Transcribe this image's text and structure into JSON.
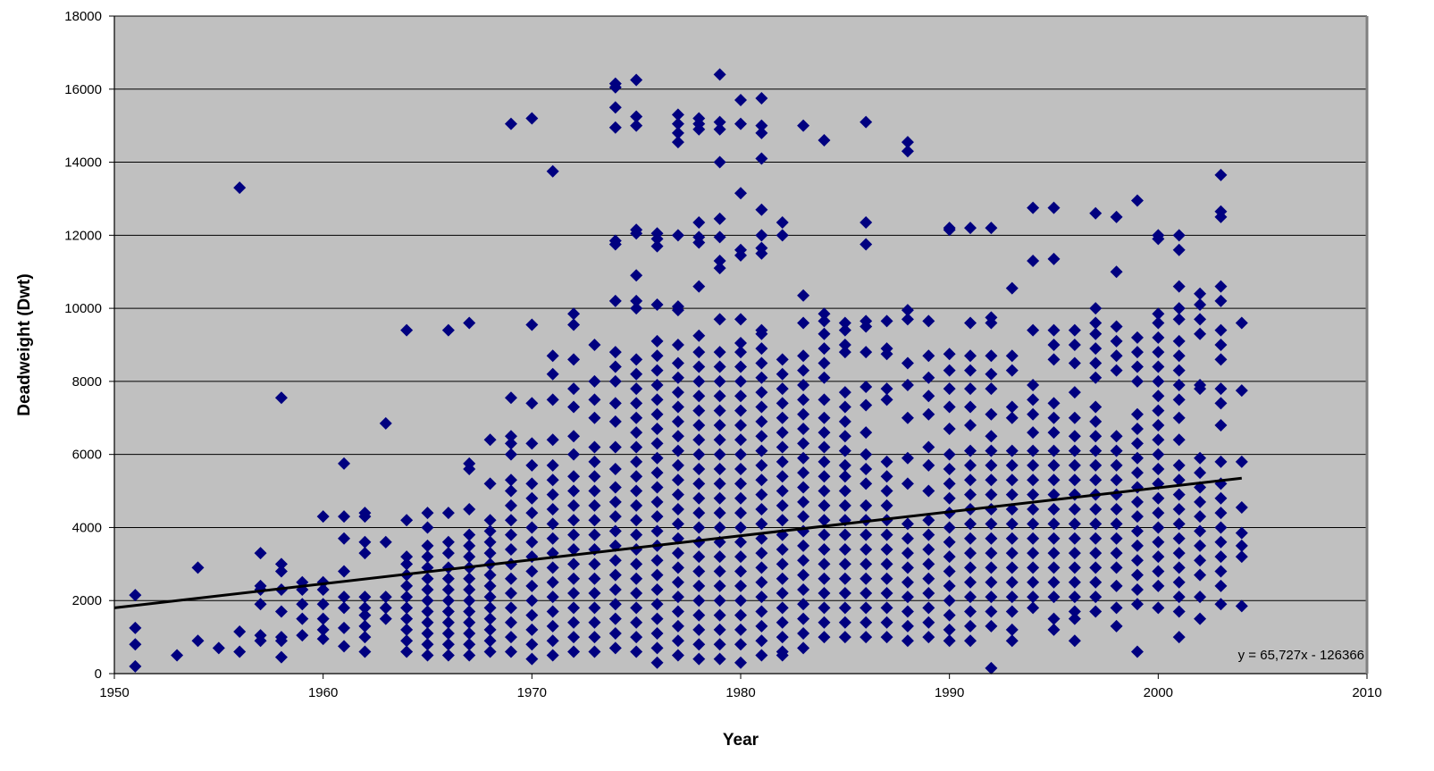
{
  "chart_data": {
    "type": "scatter",
    "xlabel": "Year",
    "ylabel": "Deadweight (Dwt)",
    "xlim": [
      1950,
      2010
    ],
    "ylim": [
      0,
      18000
    ],
    "x_ticks": [
      "1950",
      "1960",
      "1970",
      "1980",
      "1990",
      "2000",
      "2010"
    ],
    "y_ticks": [
      "0",
      "2000",
      "4000",
      "6000",
      "8000",
      "10000",
      "12000",
      "14000",
      "16000",
      "18000"
    ],
    "grid": "horizontal",
    "legend": "none",
    "trendline": {
      "type": "linear",
      "slope": 65.727,
      "intercept": -126366,
      "x_range": [
        1950,
        2004
      ],
      "label": "y = 65,727x - 126366"
    },
    "colors": {
      "plot_background": "#c0c0c0",
      "marker": "#000080",
      "trendline": "#000000",
      "gridline": "#000000"
    },
    "marker_shape": "diamond",
    "columns": [
      {
        "year": 1951,
        "points": [
          200,
          800,
          1250,
          2150
        ]
      },
      {
        "year": 1953,
        "points": [
          500
        ]
      },
      {
        "year": 1954,
        "points": [
          900,
          2900
        ]
      },
      {
        "year": 1955,
        "points": [
          700
        ]
      },
      {
        "year": 1956,
        "points": [
          600,
          1150,
          13300
        ]
      },
      {
        "year": 1957,
        "points": [
          900,
          1050,
          1900,
          2300,
          2400,
          3300
        ]
      },
      {
        "year": 1958,
        "points": [
          450,
          900,
          1000,
          1700,
          2300,
          2800,
          3000,
          7550
        ]
      },
      {
        "year": 1959,
        "points": [
          1050,
          1500,
          1900,
          2300,
          2500
        ]
      },
      {
        "year": 1960,
        "points": [
          950,
          1200,
          1500,
          1900,
          2300,
          2500,
          4300
        ]
      },
      {
        "year": 1961,
        "points": [
          750,
          1250,
          1800,
          2100,
          2800,
          3700,
          4300,
          5750
        ]
      },
      {
        "year": 1962,
        "points": [
          600,
          1000,
          1300,
          1600,
          1800,
          2100,
          3300,
          3600,
          4300,
          4400
        ]
      },
      {
        "year": 1963,
        "points": [
          1500,
          1800,
          2100,
          3600,
          6850
        ]
      },
      {
        "year": 1964,
        "points": [
          600,
          900,
          1200,
          1500,
          1800,
          2100,
          2400,
          2700,
          3000,
          3200,
          4200,
          9400
        ]
      },
      {
        "year": 1965,
        "points": [
          500,
          800,
          1100,
          1400,
          1700,
          2000,
          2300,
          2600,
          2900,
          3200,
          3500,
          4000,
          4400
        ]
      },
      {
        "year": 1966,
        "points": [
          500,
          800,
          1100,
          1400,
          1700,
          2000,
          2300,
          2600,
          2900,
          3300,
          3600,
          4400,
          9400
        ]
      },
      {
        "year": 1967,
        "points": [
          500,
          800,
          1100,
          1400,
          1700,
          2000,
          2300,
          2600,
          2900,
          3200,
          3500,
          3800,
          4500,
          5600,
          5750,
          9600
        ]
      },
      {
        "year": 1968,
        "points": [
          600,
          900,
          1200,
          1500,
          1800,
          2100,
          2400,
          2700,
          3000,
          3300,
          3600,
          3900,
          4200,
          5200,
          6400
        ]
      },
      {
        "year": 1969,
        "points": [
          600,
          1000,
          1400,
          1800,
          2200,
          2600,
          3000,
          3400,
          3800,
          4200,
          4600,
          5000,
          5300,
          6000,
          6300,
          6500,
          7550,
          15050
        ]
      },
      {
        "year": 1970,
        "points": [
          400,
          800,
          1200,
          1600,
          2000,
          2400,
          2800,
          3200,
          3600,
          4000,
          4400,
          4800,
          5200,
          5700,
          6300,
          7400,
          9550,
          15200
        ]
      },
      {
        "year": 1971,
        "points": [
          500,
          900,
          1300,
          1700,
          2100,
          2500,
          2900,
          3300,
          3700,
          4100,
          4500,
          4900,
          5300,
          5700,
          6400,
          7500,
          8200,
          8700,
          13750
        ]
      },
      {
        "year": 1972,
        "points": [
          600,
          1000,
          1400,
          1800,
          2200,
          2600,
          3000,
          3400,
          3800,
          4200,
          4600,
          5000,
          5400,
          6000,
          6500,
          7300,
          7800,
          8600,
          9550,
          9850
        ]
      },
      {
        "year": 1973,
        "points": [
          600,
          1000,
          1400,
          1800,
          2200,
          2600,
          3000,
          3400,
          3800,
          4200,
          4600,
          5000,
          5400,
          5800,
          6200,
          7000,
          7500,
          8000,
          9000
        ]
      },
      {
        "year": 1974,
        "points": [
          700,
          1100,
          1500,
          1900,
          2300,
          2700,
          3100,
          3500,
          3900,
          4300,
          4700,
          5100,
          5600,
          6200,
          6900,
          7400,
          8000,
          8400,
          8800,
          10200,
          11750,
          11850,
          14950,
          15500,
          16050,
          16150
        ]
      },
      {
        "year": 1975,
        "points": [
          600,
          1000,
          1400,
          1800,
          2200,
          2600,
          3000,
          3400,
          3800,
          4200,
          4600,
          5000,
          5400,
          5800,
          6200,
          6600,
          7000,
          7400,
          7800,
          8200,
          8600,
          10000,
          10200,
          10900,
          12050,
          12150,
          15000,
          15250,
          16250
        ]
      },
      {
        "year": 1976,
        "points": [
          300,
          700,
          1100,
          1500,
          1900,
          2300,
          2700,
          3100,
          3500,
          3900,
          4300,
          4700,
          5100,
          5500,
          5900,
          6300,
          6700,
          7100,
          7500,
          7900,
          8300,
          8700,
          9100,
          10100,
          11700,
          11900,
          12050
        ]
      },
      {
        "year": 1977,
        "points": [
          500,
          900,
          1300,
          1700,
          2100,
          2500,
          2900,
          3300,
          3700,
          4100,
          4500,
          4900,
          5300,
          5700,
          6100,
          6500,
          6900,
          7300,
          7700,
          8100,
          8500,
          9000,
          9950,
          10050,
          12000,
          14550,
          14800,
          15050,
          15300
        ]
      },
      {
        "year": 1978,
        "points": [
          400,
          800,
          1200,
          1600,
          2000,
          2400,
          2800,
          3200,
          3600,
          4000,
          4400,
          4800,
          5200,
          5600,
          6000,
          6400,
          6800,
          7200,
          7600,
          8000,
          8400,
          8800,
          9250,
          10600,
          11800,
          11950,
          12350,
          14900,
          15050,
          15200
        ]
      },
      {
        "year": 1979,
        "points": [
          400,
          800,
          1200,
          1600,
          2000,
          2400,
          2800,
          3200,
          3600,
          4000,
          4400,
          4800,
          5200,
          5600,
          6000,
          6400,
          6800,
          7200,
          7600,
          8000,
          8400,
          8800,
          9700,
          11100,
          11300,
          11950,
          12450,
          14000,
          14900,
          15100,
          16400
        ]
      },
      {
        "year": 1980,
        "points": [
          300,
          800,
          1200,
          1600,
          2000,
          2400,
          2800,
          3200,
          3600,
          4000,
          4400,
          4800,
          5200,
          5600,
          6000,
          6400,
          6800,
          7200,
          7600,
          8000,
          8400,
          8800,
          9050,
          9700,
          11450,
          11600,
          13150,
          15050,
          15700
        ]
      },
      {
        "year": 1981,
        "points": [
          500,
          900,
          1300,
          1700,
          2100,
          2500,
          2900,
          3300,
          3700,
          4100,
          4500,
          4900,
          5300,
          5700,
          6100,
          6500,
          6900,
          7300,
          7700,
          8100,
          8500,
          8900,
          9300,
          9400,
          11500,
          11650,
          12000,
          12700,
          14100,
          14800,
          15000,
          15750
        ]
      },
      {
        "year": 1982,
        "points": [
          500,
          600,
          1000,
          1400,
          1800,
          2200,
          2600,
          3000,
          3400,
          3800,
          4200,
          4600,
          5000,
          5400,
          5800,
          6200,
          6600,
          7000,
          7400,
          7800,
          8200,
          8600,
          12000,
          12350
        ]
      },
      {
        "year": 1983,
        "points": [
          700,
          1100,
          1500,
          1900,
          2300,
          2700,
          3100,
          3500,
          3900,
          4300,
          4700,
          5100,
          5500,
          5900,
          6300,
          6700,
          7100,
          7500,
          7900,
          8300,
          8700,
          9600,
          10350,
          15000
        ]
      },
      {
        "year": 1984,
        "points": [
          1000,
          1400,
          1800,
          2200,
          2600,
          3000,
          3400,
          3800,
          4200,
          4600,
          5000,
          5400,
          5800,
          6200,
          6600,
          7000,
          7500,
          8100,
          8500,
          8900,
          9300,
          9650,
          9850,
          14600
        ]
      },
      {
        "year": 1985,
        "points": [
          1000,
          1400,
          1800,
          2200,
          2600,
          3000,
          3400,
          3800,
          4200,
          4600,
          5000,
          5400,
          5700,
          6100,
          6500,
          6900,
          7300,
          7700,
          8800,
          9000,
          9400,
          9600
        ]
      },
      {
        "year": 1986,
        "points": [
          1000,
          1400,
          1800,
          2200,
          2600,
          3000,
          3400,
          3800,
          4200,
          4600,
          5200,
          5600,
          6000,
          6600,
          7350,
          7850,
          8800,
          9500,
          9650,
          11750,
          12350,
          15100
        ]
      },
      {
        "year": 1987,
        "points": [
          1000,
          1400,
          1800,
          2200,
          2600,
          3000,
          3400,
          3800,
          4200,
          4600,
          5000,
          5400,
          5800,
          7500,
          7800,
          8750,
          8900,
          9650
        ]
      },
      {
        "year": 1988,
        "points": [
          900,
          1300,
          1700,
          2100,
          2500,
          2900,
          3300,
          3700,
          4100,
          5200,
          5900,
          7000,
          7900,
          8500,
          9700,
          9950,
          14300,
          14550
        ]
      },
      {
        "year": 1989,
        "points": [
          1000,
          1400,
          1800,
          2200,
          2600,
          3000,
          3400,
          3800,
          4200,
          5000,
          5700,
          6200,
          7100,
          7600,
          8100,
          8700,
          9650
        ]
      },
      {
        "year": 1990,
        "points": [
          900,
          1200,
          1600,
          2000,
          2400,
          2800,
          3200,
          3600,
          4000,
          4400,
          4800,
          5200,
          5600,
          6000,
          6700,
          7300,
          7800,
          8300,
          8750,
          12150,
          12200
        ]
      },
      {
        "year": 1991,
        "points": [
          900,
          1300,
          1700,
          2100,
          2500,
          2900,
          3300,
          3700,
          4100,
          4500,
          4900,
          5300,
          5700,
          6100,
          6800,
          7300,
          7800,
          8300,
          8700,
          9600,
          12200
        ]
      },
      {
        "year": 1992,
        "points": [
          150,
          1300,
          1700,
          2100,
          2500,
          2900,
          3300,
          3700,
          4100,
          4500,
          4900,
          5300,
          5700,
          6100,
          6500,
          7100,
          7800,
          8200,
          8700,
          9600,
          9750,
          12200
        ]
      },
      {
        "year": 1993,
        "points": [
          900,
          1200,
          1700,
          2100,
          2500,
          2900,
          3300,
          3700,
          4100,
          4500,
          4900,
          5300,
          5700,
          6100,
          7000,
          7300,
          8300,
          8700,
          10550
        ]
      },
      {
        "year": 1994,
        "points": [
          1800,
          2100,
          2500,
          2900,
          3300,
          3700,
          4100,
          4500,
          4900,
          5300,
          5700,
          6100,
          6600,
          7100,
          7500,
          7900,
          9400,
          11300,
          12750
        ]
      },
      {
        "year": 1995,
        "points": [
          1200,
          1500,
          2100,
          2500,
          2900,
          3300,
          3700,
          4100,
          4500,
          4900,
          5300,
          5700,
          6100,
          6600,
          7000,
          7400,
          8600,
          9000,
          9400,
          11350,
          12750
        ]
      },
      {
        "year": 1996,
        "points": [
          900,
          1500,
          1700,
          2100,
          2500,
          2900,
          3300,
          3700,
          4100,
          4500,
          4900,
          5300,
          5700,
          6100,
          6500,
          7000,
          7700,
          8500,
          9000,
          9400
        ]
      },
      {
        "year": 1997,
        "points": [
          1700,
          2100,
          2500,
          2900,
          3300,
          3700,
          4100,
          4500,
          4900,
          5300,
          5700,
          6100,
          6500,
          6900,
          7300,
          8100,
          8500,
          8900,
          9300,
          9600,
          10000,
          12600
        ]
      },
      {
        "year": 1998,
        "points": [
          1300,
          1800,
          2400,
          2900,
          3300,
          3700,
          4100,
          4500,
          4900,
          5300,
          5700,
          6100,
          6500,
          8300,
          8700,
          9100,
          9500,
          11000,
          12500
        ]
      },
      {
        "year": 1999,
        "points": [
          600,
          1900,
          2300,
          2700,
          3100,
          3500,
          3900,
          4300,
          4700,
          5100,
          5500,
          5900,
          6300,
          6700,
          7100,
          8000,
          8400,
          8800,
          9200,
          12950
        ]
      },
      {
        "year": 2000,
        "points": [
          1800,
          2400,
          2800,
          3200,
          3600,
          4000,
          4400,
          4800,
          5200,
          5600,
          6000,
          6400,
          6800,
          7200,
          7600,
          8000,
          8400,
          8800,
          9200,
          9600,
          9850,
          11900,
          12000
        ]
      },
      {
        "year": 2001,
        "points": [
          1000,
          1700,
          2100,
          2500,
          2900,
          3300,
          3700,
          4100,
          4500,
          4900,
          5300,
          5700,
          6400,
          7000,
          7500,
          7900,
          8300,
          8700,
          9100,
          9700,
          10000,
          10600,
          11600,
          12000
        ]
      },
      {
        "year": 2002,
        "points": [
          1500,
          2100,
          2700,
          3100,
          3500,
          3900,
          4300,
          4700,
          5100,
          5500,
          5900,
          7800,
          7900,
          9300,
          9700,
          10100,
          10400
        ]
      },
      {
        "year": 2003,
        "points": [
          1900,
          2400,
          2800,
          3200,
          3600,
          4000,
          4400,
          4800,
          5200,
          5800,
          6800,
          7400,
          7800,
          8600,
          9000,
          9400,
          10200,
          10600,
          12500,
          12650,
          13650
        ]
      },
      {
        "year": 2004,
        "points": [
          1850,
          3200,
          3500,
          3850,
          4550,
          5800,
          7750,
          9600
        ]
      }
    ]
  }
}
